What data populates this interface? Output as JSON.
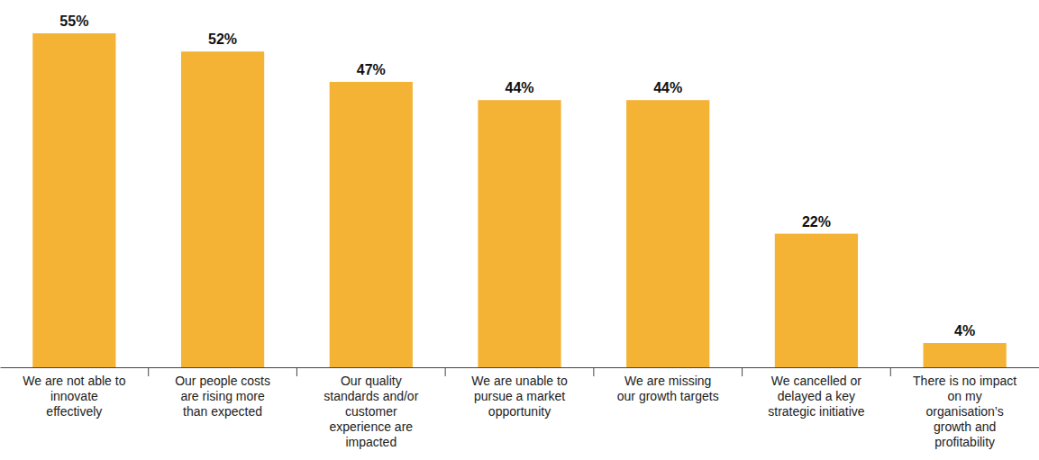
{
  "chart_data": {
    "type": "bar",
    "categories": [
      "We are not able to innovate effectively",
      "Our people costs are rising more than expected",
      "Our quality standards and/or customer experience are impacted",
      "We are unable to pursue a market opportunity",
      "We are missing our growth targets",
      "We cancelled or delayed a key strategic initiative",
      "There is no impact on my organisation’s growth and profitability"
    ],
    "values": [
      55,
      52,
      47,
      44,
      44,
      22,
      4
    ],
    "value_labels": [
      "55%",
      "52%",
      "47%",
      "44%",
      "44%",
      "22%",
      "4%"
    ],
    "color": "#f5b335",
    "ylim": [
      0,
      55
    ],
    "data_labels": true,
    "tick_labels": "x",
    "grid": false
  }
}
